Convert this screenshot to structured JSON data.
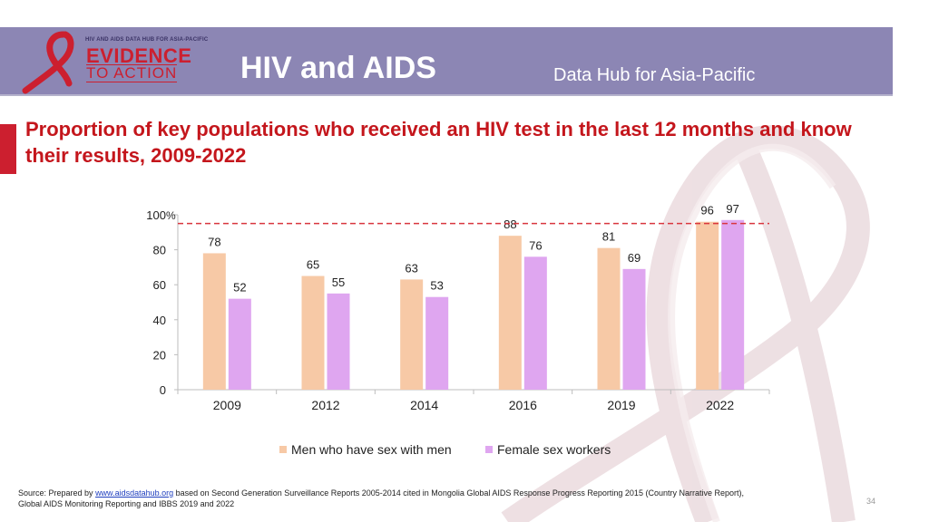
{
  "header": {
    "logo_small_text": "HIV AND AIDS DATA HUB FOR ASIA-PACIFIC",
    "logo_line1": "EVIDENCE",
    "logo_line2": "TO ACTION",
    "app_title": "HIV and AIDS",
    "app_subtitle": "Data Hub for Asia-Pacific"
  },
  "slide": {
    "title": "Proportion of key populations who received an HIV test in the last 12 months and know their results, 2009-2022"
  },
  "colors": {
    "header_band": "#8c86b4",
    "title_red": "#c4161c",
    "series_msm": "#f7c9a6",
    "series_fsw": "#dfa6f0",
    "target_line": "#d9363e"
  },
  "chart_data": {
    "type": "bar",
    "categories": [
      "2009",
      "2012",
      "2014",
      "2016",
      "2019",
      "2022"
    ],
    "series": [
      {
        "name": "Men who have sex with men",
        "values": [
          78,
          65,
          63,
          88,
          81,
          96
        ]
      },
      {
        "name": "Female sex workers",
        "values": [
          52,
          55,
          53,
          76,
          69,
          97
        ]
      }
    ],
    "ylim": [
      0,
      100
    ],
    "yticks": [
      0,
      20,
      40,
      60,
      80,
      100
    ],
    "ytick_labels": [
      "0",
      "20",
      "40",
      "60",
      "80",
      "100"
    ],
    "ylabel": "%",
    "target_line_value": 95,
    "data_labels": true,
    "legend_position": "bottom",
    "grid": false
  },
  "source": {
    "prefix": "Source: Prepared by ",
    "link_text": "www.aidsdatahub.org",
    "suffix": " based on Second Generation Surveillance  Reports 2005-2014 cited in Mongolia Global AIDS Response Progress Reporting 2015 (Country Narrative Report),",
    "line2": "Global AIDS Monitoring Reporting and IBBS 2019 and 2022"
  },
  "page_number": "34"
}
